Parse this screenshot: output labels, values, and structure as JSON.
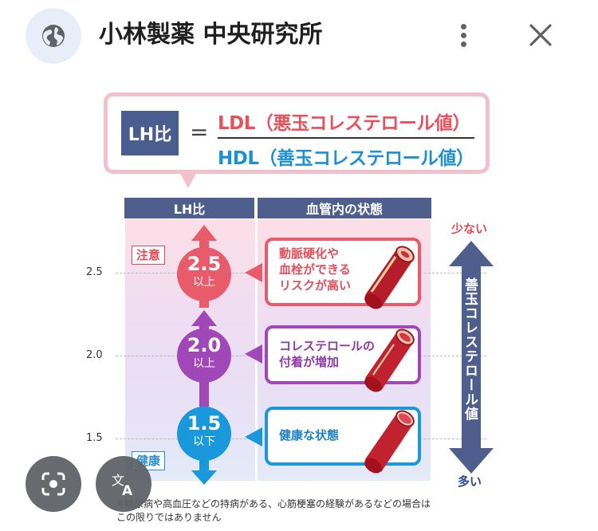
{
  "header": {
    "title": "小林製薬 中央研究所",
    "icons": {
      "site": "globe-icon",
      "menu": "more-vert-icon",
      "close": "close-icon"
    }
  },
  "figure": {
    "formula": {
      "label": "LH比",
      "equals": "=",
      "numerator": "LDL（悪玉コレステロール値）",
      "denominator": "HDL（善玉コレステロール値）"
    },
    "columns": {
      "left": "LH比",
      "right": "血管内の状態"
    },
    "tags": {
      "caution": "注意",
      "healthy": "健康"
    },
    "y_ticks": [
      "2.5",
      "2.0",
      "1.5"
    ],
    "levels": [
      {
        "value": "2.5",
        "unit": "以上",
        "color": "#e85b6a",
        "state": "動脈硬化や\n血栓ができる\nリスクが高い"
      },
      {
        "value": "2.0",
        "unit": "以上",
        "color": "#a048b8",
        "state": "コレステロールの\n付着が増加"
      },
      {
        "value": "1.5",
        "unit": "以下",
        "color": "#1a98dc",
        "state": "健康な状態"
      }
    ],
    "side_arrow": {
      "top_label": "少ない",
      "bottom_label": "多い",
      "label": "善玉コレステロール値",
      "color": "#4e5f8e"
    },
    "footnote": "※糖尿病や高血圧などの持病がある、心筋梗塞の経験があるなどの場合は\nこの限りではありません"
  },
  "floating_buttons": {
    "lens": "lens-icon",
    "translate": "translate-icon"
  },
  "colors": {
    "accent_red": "#e8505b",
    "accent_blue": "#1d8fd6",
    "header_navy": "#4e5f8e"
  }
}
